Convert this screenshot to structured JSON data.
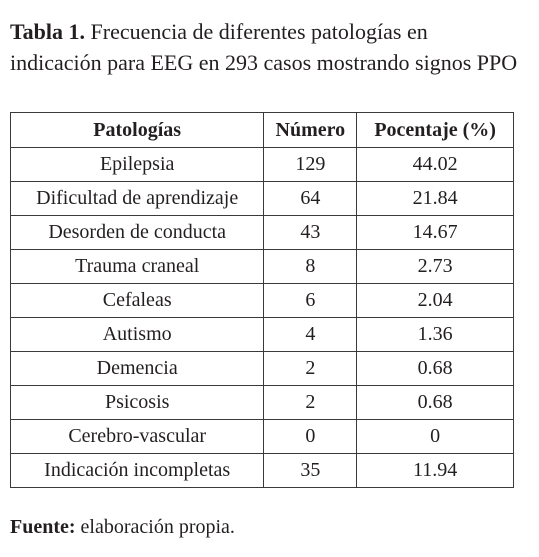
{
  "caption": {
    "label": "Tabla 1.",
    "text": "Frecuencia de diferentes patologías en indicación para EEG en 293 casos mostrando signos PPO"
  },
  "table": {
    "header": [
      "Patologías",
      "Número",
      "Pocentaje (%)"
    ],
    "rows": [
      [
        "Epilepsia",
        "129",
        "44.02"
      ],
      [
        "Dificultad de aprendizaje",
        "64",
        "21.84"
      ],
      [
        "Desorden de conducta",
        "43",
        "14.67"
      ],
      [
        "Trauma craneal",
        "8",
        "2.73"
      ],
      [
        "Cefaleas",
        "6",
        "2.04"
      ],
      [
        "Autismo",
        "4",
        "1.36"
      ],
      [
        "Demencia",
        "2",
        "0.68"
      ],
      [
        "Psicosis",
        "2",
        "0.68"
      ],
      [
        "Cerebro-vascular",
        "0",
        "0"
      ],
      [
        "Indicación incompletas",
        "35",
        "11.94"
      ]
    ]
  },
  "footer": {
    "label": "Fuente:",
    "text": "elaboración propia."
  }
}
